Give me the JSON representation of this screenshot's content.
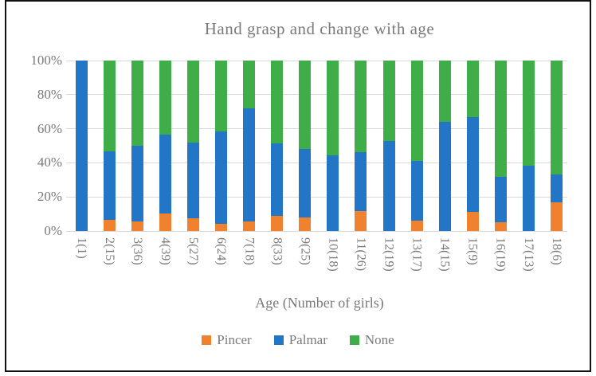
{
  "chart_data": {
    "type": "bar",
    "variant": "100%-stacked-column",
    "title": "Hand grasp and change with age",
    "xlabel": "Age (Number of girls)",
    "ylabel": "",
    "ylim": [
      0,
      100
    ],
    "y_ticks": [
      "100%",
      "80%",
      "60%",
      "40%",
      "20%",
      "0%"
    ],
    "grid": "horizontal",
    "legend_position": "bottom",
    "gridline_color": "#d9d9d9",
    "text_color": "#7a7a7a",
    "categories": [
      "1(1)",
      "2(15)",
      "3(36)",
      "4(39)",
      "5(27)",
      "6(24)",
      "7(18)",
      "8(33)",
      "9(25)",
      "10(18)",
      "11(26)",
      "12(19)",
      "13(17)",
      "14(15)",
      "15(9)",
      "16(19)",
      "17(13)",
      "18(6)"
    ],
    "series": [
      {
        "name": "Pincer",
        "color": "#f0812f",
        "values": [
          0,
          6.7,
          5.6,
          10.3,
          7.4,
          4.2,
          5.6,
          9.1,
          8.0,
          0,
          11.5,
          0,
          5.9,
          0,
          11.1,
          5.3,
          0,
          16.7
        ]
      },
      {
        "name": "Palmar",
        "color": "#2375c6",
        "values": [
          100,
          40.0,
          44.4,
          46.1,
          44.5,
          54.1,
          66.6,
          42.4,
          40.0,
          44.4,
          34.7,
          52.6,
          35.3,
          64.0,
          55.6,
          26.3,
          38.5,
          16.6
        ]
      },
      {
        "name": "None",
        "color": "#3fae49",
        "values": [
          0,
          53.3,
          50.0,
          43.6,
          48.1,
          41.7,
          27.8,
          48.5,
          52.0,
          55.6,
          53.8,
          47.4,
          58.8,
          36.0,
          33.3,
          68.4,
          61.5,
          66.7
        ]
      }
    ]
  }
}
